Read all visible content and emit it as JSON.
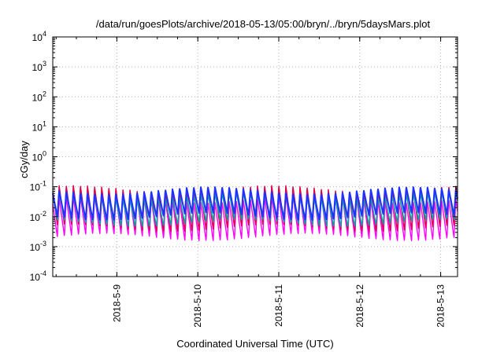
{
  "chart_data": {
    "type": "line",
    "title": "/data/run/goesPlots/archive/2018-05-13/05:00/bryn/../bryn/5daysMars.plot",
    "xlabel": "Coordinated Universal Time (UTC)",
    "ylabel": "cGy/day",
    "y_scale": "log",
    "ylim": [
      0.0001,
      10000
    ],
    "y_ticks": [
      {
        "value": 0.0001,
        "base": "10",
        "exp": "-4"
      },
      {
        "value": 0.001,
        "base": "10",
        "exp": "-3"
      },
      {
        "value": 0.01,
        "base": "10",
        "exp": "-2"
      },
      {
        "value": 0.1,
        "base": "10",
        "exp": "-1"
      },
      {
        "value": 1,
        "base": "10",
        "exp": "0"
      },
      {
        "value": 10,
        "base": "10",
        "exp": "1"
      },
      {
        "value": 100,
        "base": "10",
        "exp": "2"
      },
      {
        "value": 1000,
        "base": "10",
        "exp": "3"
      },
      {
        "value": 10000,
        "base": "10",
        "exp": "4"
      }
    ],
    "xlim": [
      "2018-05-08 05:00",
      "2018-05-13 05:00"
    ],
    "x_ticks": [
      "2018-5-9",
      "2018-5-10",
      "2018-5-11",
      "2018-5-12",
      "2018-5-13"
    ],
    "grid": true,
    "series": [
      {
        "color": "#ff00ff",
        "peak_cgy_day": 0.04,
        "trough_cgy_day": 0.002
      },
      {
        "color": "#e0004a",
        "peak_cgy_day": 0.085,
        "trough_cgy_day": 0.004
      },
      {
        "color": "#00a8a8",
        "peak_cgy_day": 0.05,
        "trough_cgy_day": 0.006
      },
      {
        "color": "#2030ff",
        "peak_cgy_day": 0.075,
        "trough_cgy_day": 0.01
      }
    ],
    "oscillation_period_hours": 2.1
  }
}
